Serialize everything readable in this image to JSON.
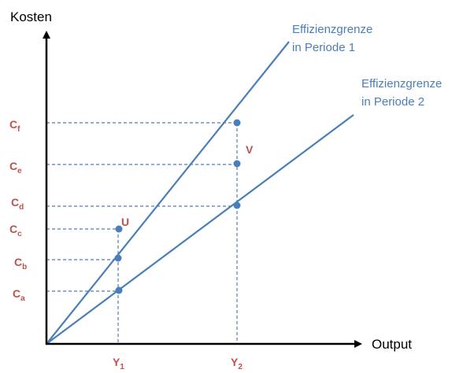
{
  "colors": {
    "line": "#4a7ebb",
    "label_red": "#c0504d",
    "axis": "#000000",
    "frontier_text": "#4a7ebb"
  },
  "axes": {
    "y_title": "Kosten",
    "x_title": "Output"
  },
  "frontiers": [
    {
      "line1": "Effizienzgrenze",
      "line2": "in Periode 1"
    },
    {
      "line1": "Effizienzgrenze",
      "line2": "in Periode 2"
    }
  ],
  "y_ticks": [
    {
      "main": "C",
      "sub": "f"
    },
    {
      "main": "C",
      "sub": "e"
    },
    {
      "main": "C",
      "sub": "d"
    },
    {
      "main": "C",
      "sub": "c"
    },
    {
      "main": "C",
      "sub": "b"
    },
    {
      "main": "C",
      "sub": "a"
    }
  ],
  "x_ticks": [
    {
      "main": "Y",
      "sub": "1"
    },
    {
      "main": "Y",
      "sub": "2"
    }
  ],
  "points": {
    "u": "U",
    "v": "V"
  }
}
